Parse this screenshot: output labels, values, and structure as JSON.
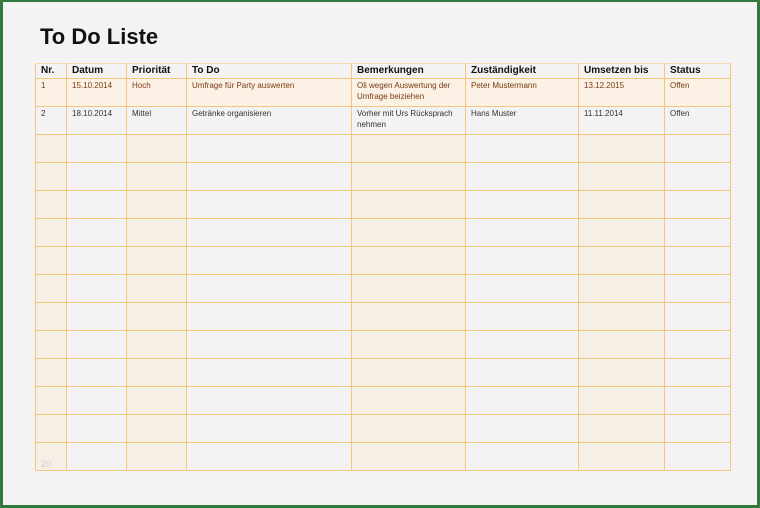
{
  "title": "To Do Liste",
  "columns": [
    "Nr.",
    "Datum",
    "Priorität",
    "To Do",
    "Bemerkungen",
    "Zuständigkeit",
    "Umsetzen bis",
    "Status"
  ],
  "rows": [
    [
      "1",
      "15.10.2014",
      "Hoch",
      "Umfrage für Party auswerten",
      "Oli wegen Auswertung der Umfrage beiziehen",
      "Peter Mustermann",
      "13.12.2015",
      "Offen"
    ],
    [
      "2",
      "18.10.2014",
      "Mittel",
      "Getränke organisieren",
      "Vorher mit Urs Rücksprach nehmen",
      "Hans Muster",
      "11.11.2014",
      "Offen"
    ]
  ],
  "empty_rows": 12,
  "footer": "20",
  "colors": {
    "border": "#2f7a3c",
    "grid": "#f2c97a",
    "background": "#f4f2f4"
  }
}
